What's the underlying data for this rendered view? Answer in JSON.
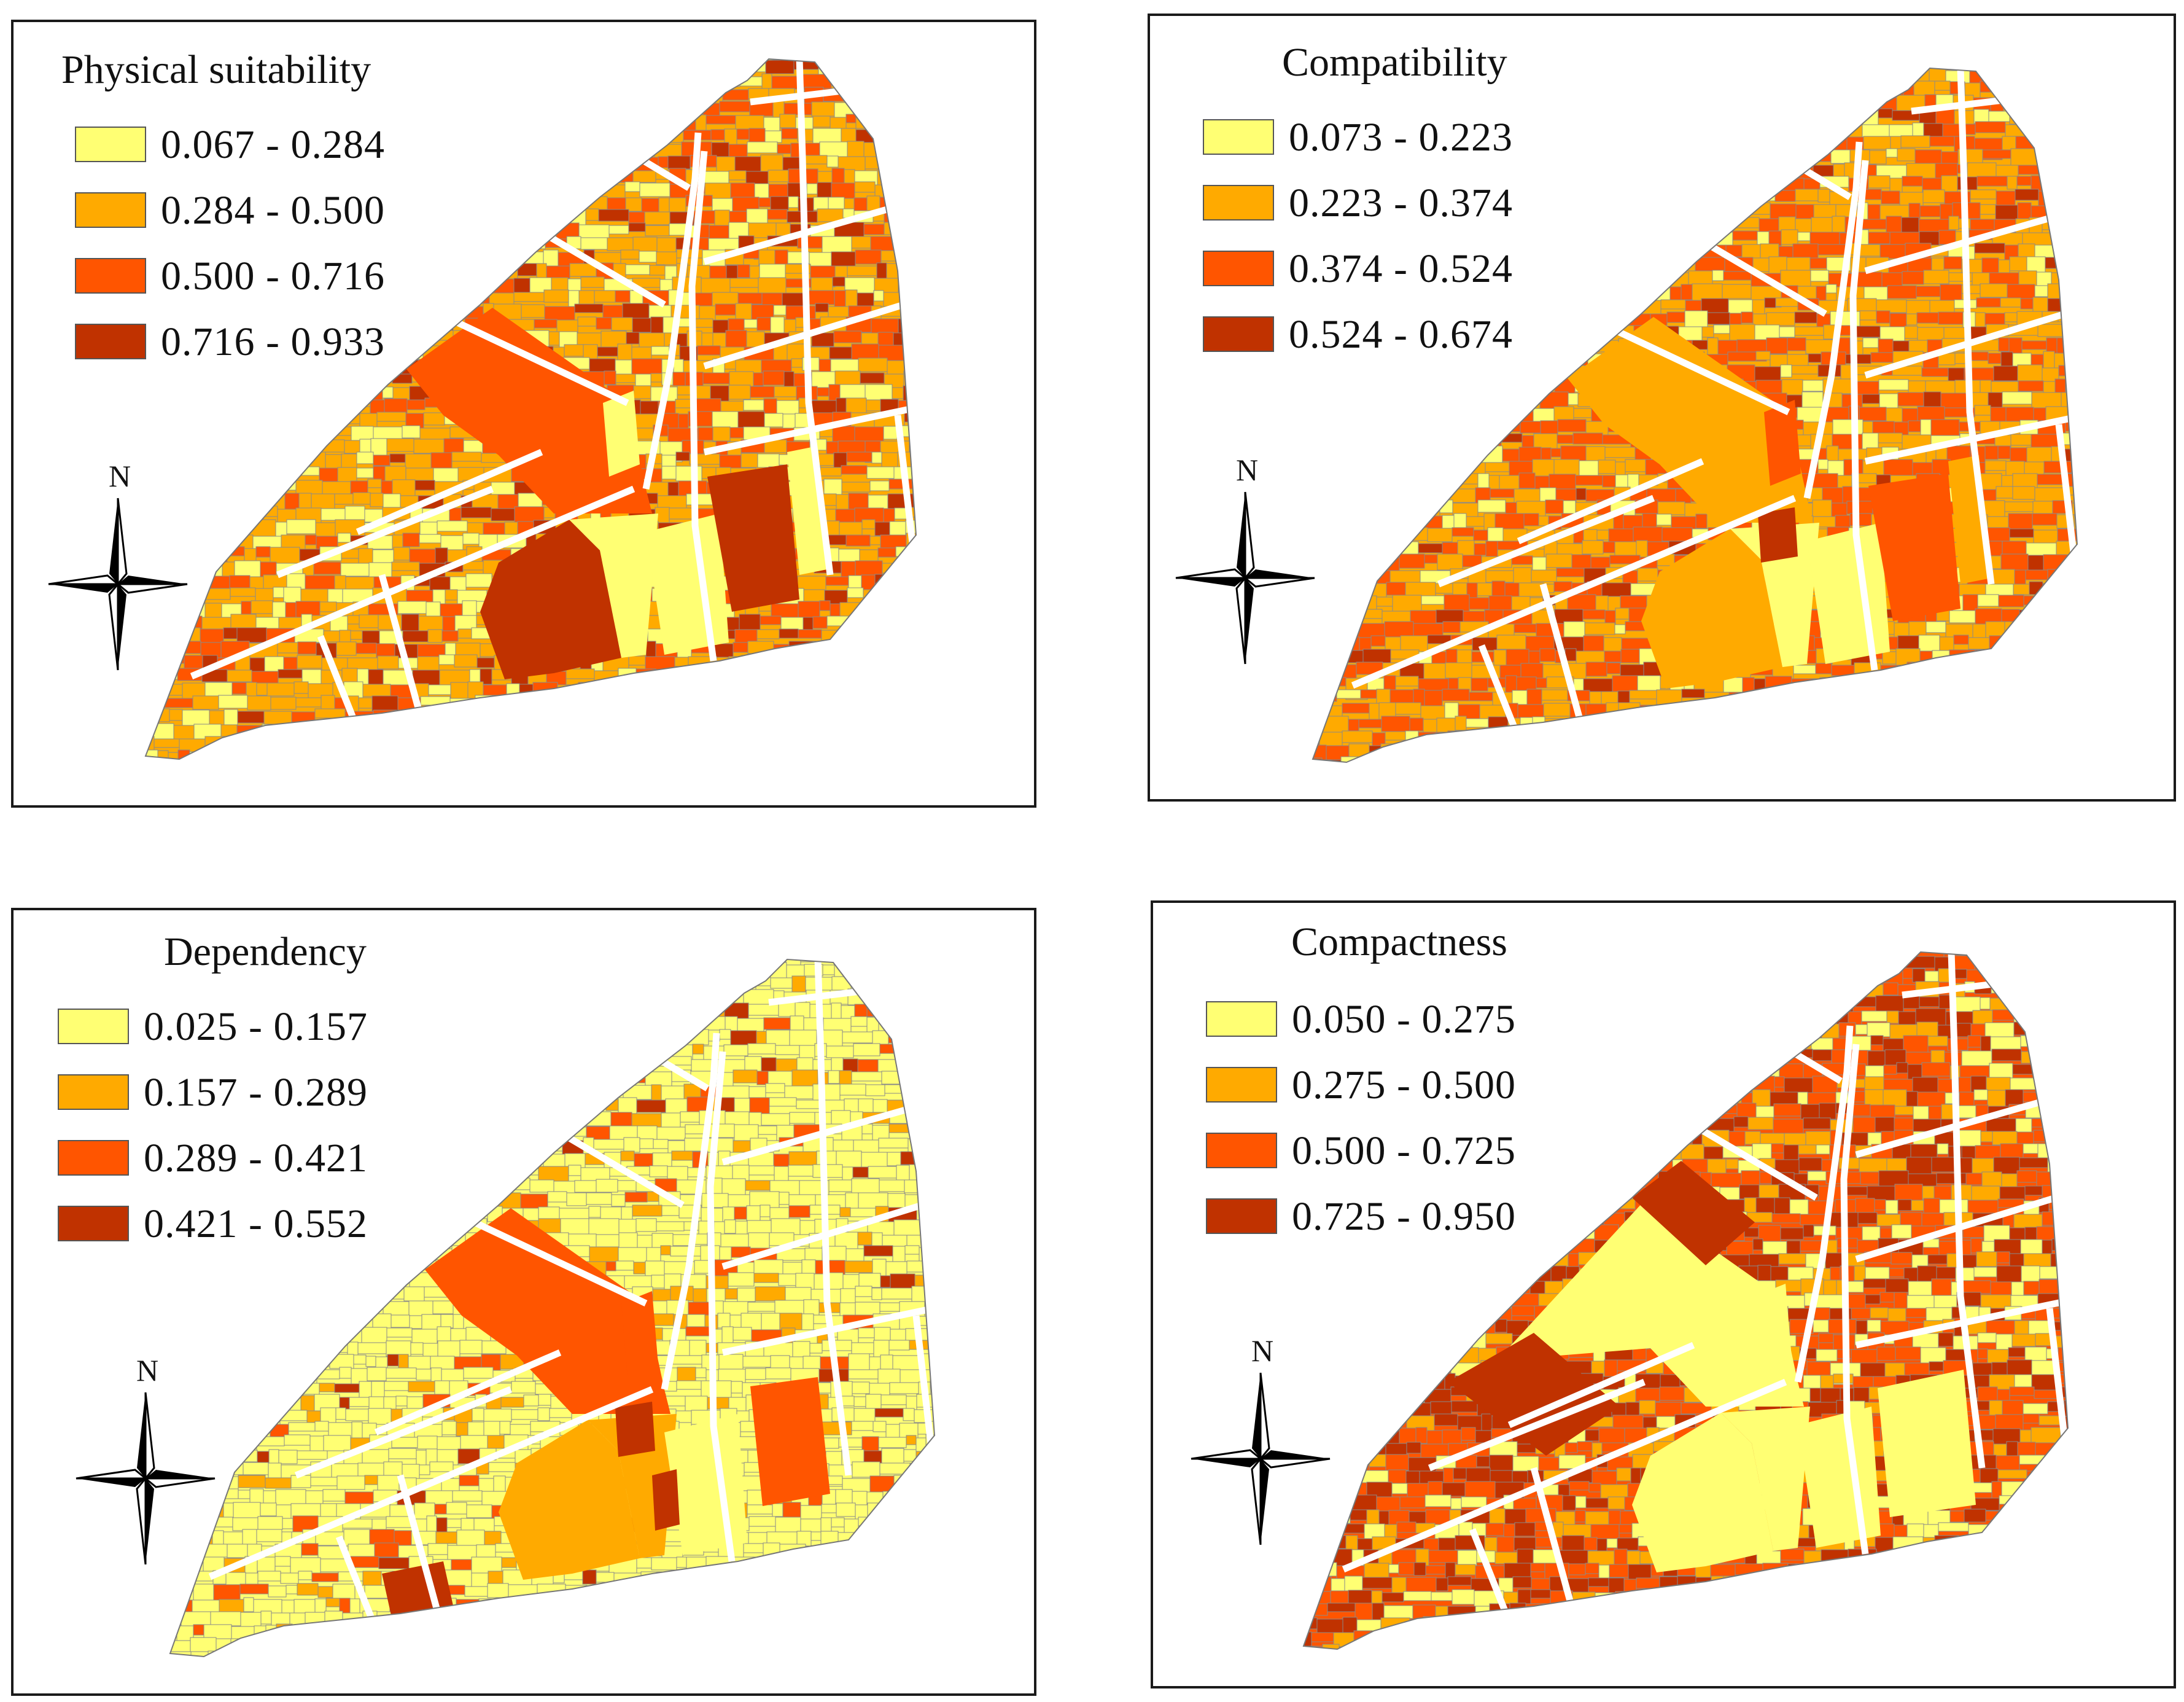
{
  "panels": [
    {
      "id": "physical",
      "title": "Physical suitability",
      "legend": [
        {
          "range": "0.067 - 0.284",
          "color": "#ffff73"
        },
        {
          "range": "0.284 - 0.500",
          "color": "#ffaa00"
        },
        {
          "range": "0.500 - 0.716",
          "color": "#ff5500"
        },
        {
          "range": "0.716 - 0.933",
          "color": "#c03200"
        }
      ]
    },
    {
      "id": "compatibility",
      "title": "Compatibility",
      "legend": [
        {
          "range": "0.073 - 0.223",
          "color": "#ffff73"
        },
        {
          "range": "0.223 - 0.374",
          "color": "#ffaa00"
        },
        {
          "range": "0.374 - 0.524",
          "color": "#ff5500"
        },
        {
          "range": "0.524 - 0.674",
          "color": "#c03200"
        }
      ]
    },
    {
      "id": "dependency",
      "title": "Dependency",
      "legend": [
        {
          "range": "0.025 - 0.157",
          "color": "#ffff73"
        },
        {
          "range": "0.157 - 0.289",
          "color": "#ffaa00"
        },
        {
          "range": "0.289 - 0.421",
          "color": "#ff5500"
        },
        {
          "range": "0.421 - 0.552",
          "color": "#c03200"
        }
      ]
    },
    {
      "id": "compactness",
      "title": "Compactness",
      "legend": [
        {
          "range": "0.050 - 0.275",
          "color": "#ffff73"
        },
        {
          "range": "0.275 - 0.500",
          "color": "#ffaa00"
        },
        {
          "range": "0.500 - 0.725",
          "color": "#ff5500"
        },
        {
          "range": "0.725 - 0.950",
          "color": "#c03200"
        }
      ]
    }
  ],
  "north_label": "N"
}
